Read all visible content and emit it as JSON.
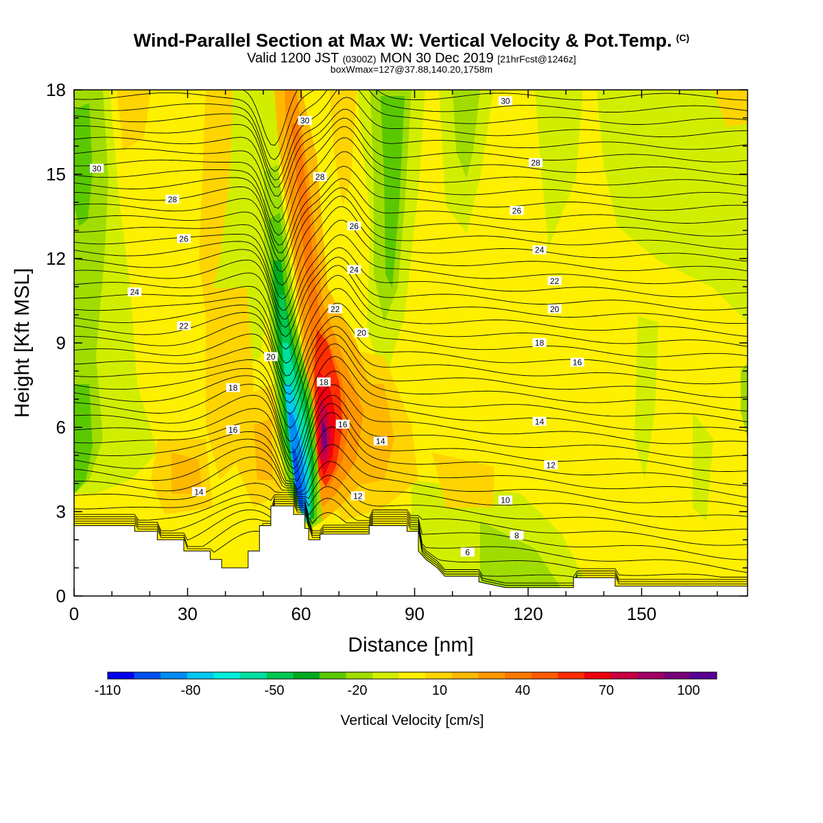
{
  "title": {
    "main": "Wind-Parallel Section at Max W: Vertical Velocity & Pot.Temp.",
    "main_suffix": "(C)",
    "valid_prefix": "Valid 1200 JST",
    "valid_utc": "(0300Z)",
    "valid_date": "MON 30 Dec 2019",
    "valid_fcst": "[21hrFcst@1246z]",
    "boxwmax": "boxWmax=127@37.88,140.20,1758m"
  },
  "chart_data": {
    "type": "heatmap",
    "xlabel": "Distance [nm]",
    "ylabel": "Height [Kft MSL]",
    "xlim": [
      0,
      178
    ],
    "ylim": [
      0,
      18
    ],
    "x_ticks": [
      0,
      30,
      60,
      90,
      120,
      150
    ],
    "y_ticks": [
      0,
      3,
      6,
      9,
      12,
      15,
      18
    ],
    "colorbar": {
      "title": "Vertical Velocity [cm/s]",
      "ticks": [
        "-110",
        "-80",
        "-50",
        "-20",
        "10",
        "40",
        "70",
        "100"
      ],
      "colors": [
        "#0000ee",
        "#0050f0",
        "#008cf2",
        "#00c8f2",
        "#00eedc",
        "#00e0a0",
        "#00c850",
        "#00aa1e",
        "#5ac800",
        "#a0dc00",
        "#d2ee00",
        "#fff000",
        "#ffd400",
        "#ffb800",
        "#ff9600",
        "#ff7800",
        "#ff5a00",
        "#ff2d00",
        "#ee0010",
        "#c80040",
        "#a00064",
        "#780078",
        "#5a0096"
      ]
    },
    "terrain": [
      [
        0,
        2.5
      ],
      [
        16,
        2.5
      ],
      [
        16,
        2.3
      ],
      [
        22,
        2.3
      ],
      [
        22,
        2.0
      ],
      [
        29,
        2.0
      ],
      [
        29,
        1.6
      ],
      [
        36,
        1.6
      ],
      [
        36,
        1.3
      ],
      [
        39,
        1.3
      ],
      [
        39,
        1.0
      ],
      [
        46,
        1.0
      ],
      [
        46,
        1.6
      ],
      [
        49,
        1.6
      ],
      [
        49,
        2.5
      ],
      [
        52,
        2.5
      ],
      [
        52,
        3.2
      ],
      [
        58,
        3.2
      ],
      [
        58,
        2.9
      ],
      [
        61,
        2.9
      ],
      [
        61,
        2.4
      ],
      [
        62,
        2.4
      ],
      [
        62,
        2.0
      ],
      [
        65,
        2.0
      ],
      [
        65,
        2.2
      ],
      [
        78,
        2.2
      ],
      [
        78,
        2.5
      ],
      [
        88,
        2.5
      ],
      [
        88,
        2.3
      ],
      [
        91,
        2.3
      ],
      [
        91,
        1.6
      ],
      [
        93,
        1.3
      ],
      [
        96,
        1.0
      ],
      [
        98,
        0.7
      ],
      [
        107,
        0.7
      ],
      [
        107,
        0.5
      ],
      [
        114,
        0.3
      ],
      [
        132,
        0.3
      ],
      [
        132,
        0.65
      ],
      [
        143,
        0.65
      ],
      [
        143,
        0.35
      ],
      [
        178,
        0.35
      ]
    ],
    "updraft": {
      "peak_cm_s": 127
    },
    "theta_contours": [
      {
        "value": "6",
        "label_at": [
          104,
          1.55
        ]
      },
      {
        "value": "8",
        "label_at": [
          117,
          2.15
        ]
      },
      {
        "value": "10",
        "label_at": [
          114,
          3.4
        ]
      },
      {
        "value": "12",
        "label_at": [
          126,
          4.65
        ]
      },
      {
        "value": "12",
        "label_at": [
          75,
          3.55
        ]
      },
      {
        "value": "14",
        "label_at": [
          33,
          3.7
        ]
      },
      {
        "value": "14",
        "label_at": [
          81,
          5.5
        ]
      },
      {
        "value": "14",
        "label_at": [
          123,
          6.2
        ]
      },
      {
        "value": "16",
        "label_at": [
          42,
          5.9
        ]
      },
      {
        "value": "16",
        "label_at": [
          71,
          6.1
        ]
      },
      {
        "value": "16",
        "label_at": [
          133,
          8.3
        ]
      },
      {
        "value": "18",
        "label_at": [
          42,
          7.4
        ]
      },
      {
        "value": "18",
        "label_at": [
          66,
          7.6
        ]
      },
      {
        "value": "18",
        "label_at": [
          123,
          9.0
        ]
      },
      {
        "value": "20",
        "label_at": [
          52,
          8.5
        ]
      },
      {
        "value": "20",
        "label_at": [
          76,
          9.35
        ]
      },
      {
        "value": "20",
        "label_at": [
          127,
          10.2
        ]
      },
      {
        "value": "22",
        "label_at": [
          29,
          9.6
        ]
      },
      {
        "value": "22",
        "label_at": [
          69,
          10.2
        ]
      },
      {
        "value": "22",
        "label_at": [
          127,
          11.2
        ]
      },
      {
        "value": "24",
        "label_at": [
          16,
          10.8
        ]
      },
      {
        "value": "24",
        "label_at": [
          74,
          11.6
        ]
      },
      {
        "value": "24",
        "label_at": [
          123,
          12.3
        ]
      },
      {
        "value": "26",
        "label_at": [
          29,
          12.7
        ]
      },
      {
        "value": "26",
        "label_at": [
          74,
          13.15
        ]
      },
      {
        "value": "26",
        "label_at": [
          117,
          13.7
        ]
      },
      {
        "value": "28",
        "label_at": [
          26,
          14.1
        ]
      },
      {
        "value": "28",
        "label_at": [
          65,
          14.9
        ]
      },
      {
        "value": "28",
        "label_at": [
          122,
          15.4
        ]
      },
      {
        "value": "30",
        "label_at": [
          6,
          15.2
        ]
      },
      {
        "value": "30",
        "label_at": [
          61,
          16.9
        ]
      },
      {
        "value": "30",
        "label_at": [
          114,
          17.6
        ]
      }
    ]
  }
}
